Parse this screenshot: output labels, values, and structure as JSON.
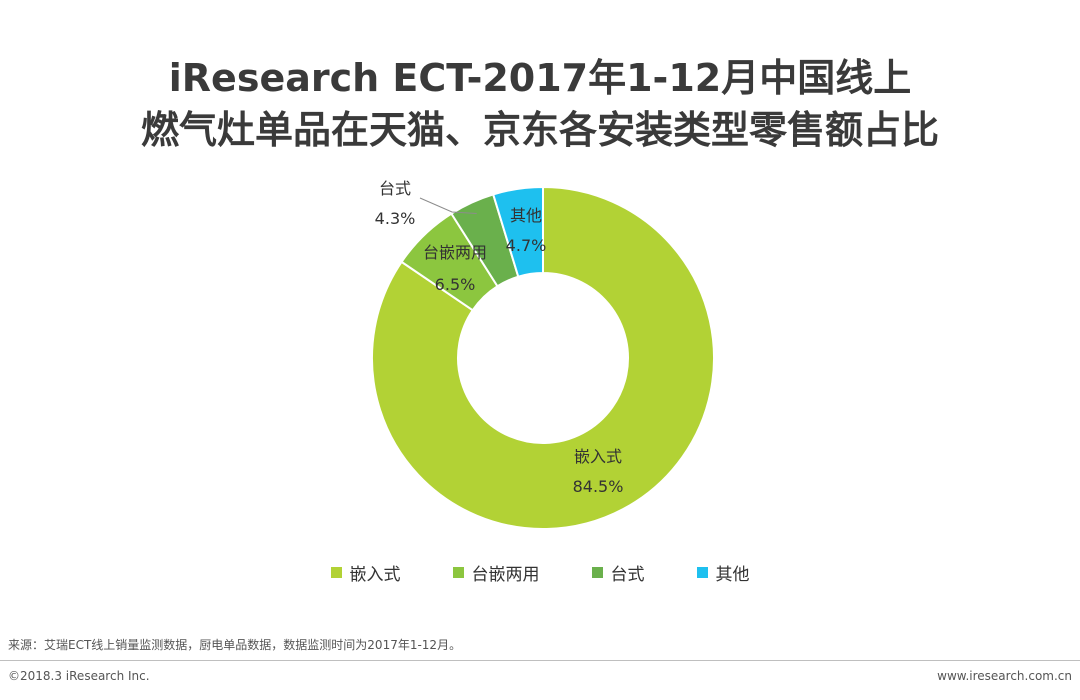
{
  "chart_data": {
    "type": "pie",
    "title_line1": "iResearch ECT-2017年1-12月中国线上",
    "title_line2": "燃气灶单品在天猫、京东各安装类型零售额占比",
    "categories": [
      "嵌入式",
      "台嵌两用",
      "台式",
      "其他"
    ],
    "values": [
      84.5,
      6.5,
      4.3,
      4.7
    ],
    "value_labels": [
      "84.5%",
      "6.5%",
      "4.3%",
      "4.7%"
    ],
    "colors": [
      "#b2d235",
      "#8cc63f",
      "#6ab04c",
      "#1ec0ef"
    ],
    "legend_position": "bottom",
    "donut": true
  },
  "footer": {
    "source": "来源：艾瑞ECT线上销量监测数据，厨电单品数据，数据监测时间为2017年1-12月。",
    "copyright": "©2018.3 iResearch Inc.",
    "website": "www.iresearch.com.cn"
  }
}
